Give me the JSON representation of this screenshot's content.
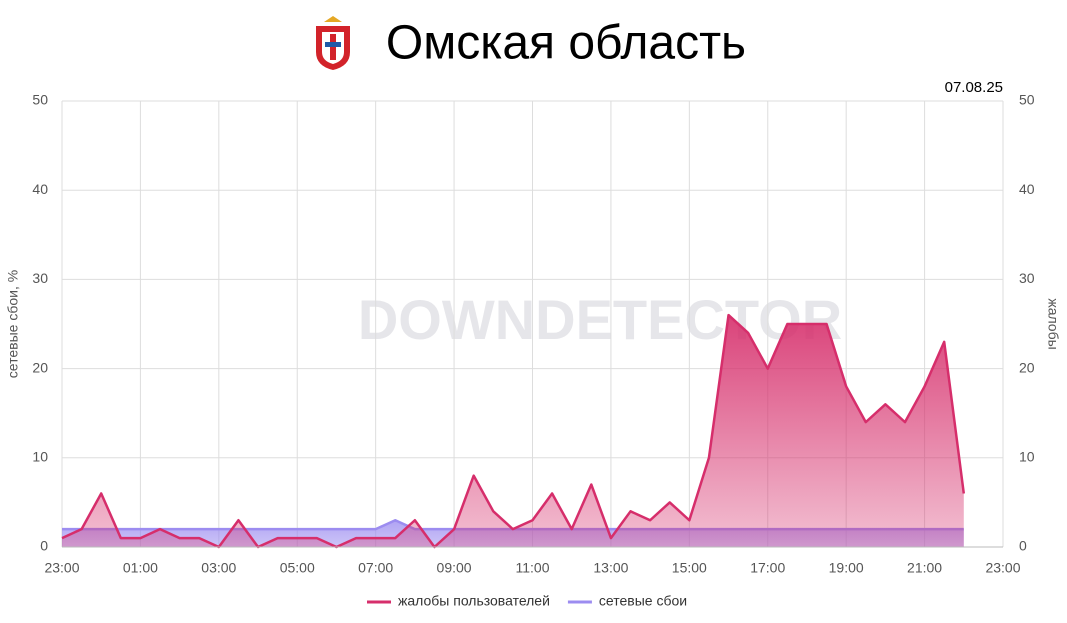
{
  "chart_data": {
    "type": "area",
    "title": "Омская область",
    "date": "07.08.25",
    "watermark": "DOWNDETECTOR",
    "y_label": "сетевые сбои, %",
    "y2_label": "жалобы",
    "categories": [
      "23:00",
      null,
      null,
      null,
      "01:00",
      null,
      null,
      null,
      "03:00",
      null,
      null,
      null,
      "05:00",
      null,
      null,
      null,
      "07:00",
      null,
      null,
      null,
      "09:00",
      null,
      null,
      null,
      "11:00",
      null,
      null,
      null,
      "13:00",
      null,
      null,
      null,
      "15:00",
      null,
      null,
      null,
      "17:00",
      null,
      null,
      null,
      "19:00",
      null,
      null,
      null,
      "21:00",
      null,
      null,
      null,
      "23:00"
    ],
    "series": [
      {
        "name": "жалобы пользователей",
        "color": "#d62e6b",
        "axis": "y2",
        "values": [
          1,
          2,
          6,
          1,
          1,
          2,
          1,
          1,
          0,
          3,
          0,
          1,
          1,
          1,
          0,
          1,
          1,
          1,
          3,
          0,
          2,
          8,
          4,
          2,
          3,
          6,
          2,
          7,
          1,
          4,
          3,
          5,
          3,
          10,
          26,
          24,
          20,
          25,
          25,
          25,
          18,
          14,
          16,
          14,
          18,
          23,
          6,
          null,
          null
        ]
      },
      {
        "name": "сетевые сбои",
        "color": "#9c8cf0",
        "values": [
          2,
          2,
          2,
          2,
          2,
          2,
          2,
          2,
          2,
          2,
          2,
          2,
          2,
          2,
          2,
          2,
          2,
          3,
          2,
          2,
          2,
          2,
          2,
          2,
          2,
          2,
          2,
          2,
          2,
          2,
          2,
          2,
          2,
          2,
          2,
          2,
          2,
          2,
          2,
          2,
          2,
          2,
          2,
          2,
          2,
          2,
          2,
          null,
          null
        ]
      }
    ],
    "ylim": [
      0,
      50
    ],
    "yticks": [
      0,
      10,
      20,
      30,
      40,
      50
    ],
    "y2lim": [
      0,
      50
    ],
    "y2ticks": [
      0,
      10,
      20,
      30,
      40,
      50
    ],
    "grid": true,
    "legend": "bottom"
  }
}
